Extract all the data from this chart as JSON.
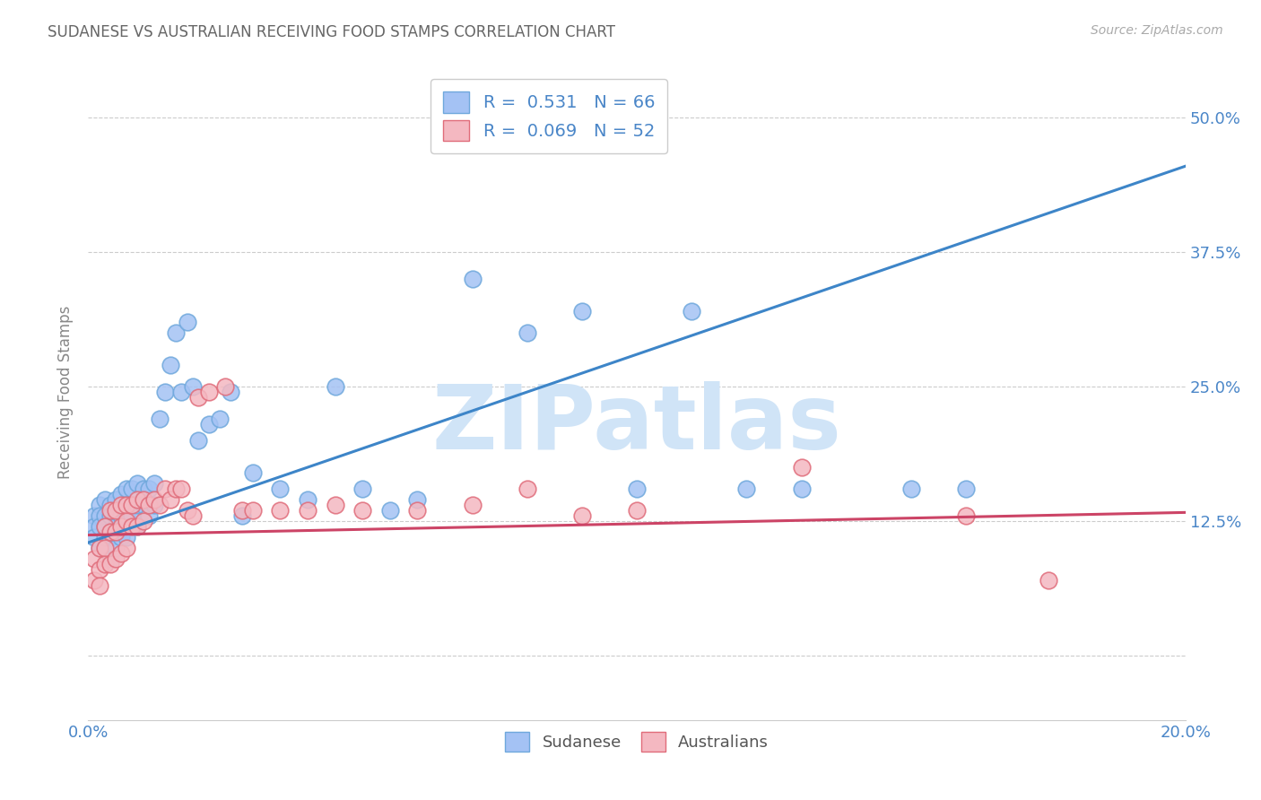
{
  "title": "SUDANESE VS AUSTRALIAN RECEIVING FOOD STAMPS CORRELATION CHART",
  "source": "Source: ZipAtlas.com",
  "ylabel": "Receiving Food Stamps",
  "xlim": [
    0.0,
    0.2
  ],
  "ylim": [
    -0.06,
    0.55
  ],
  "xticks": [
    0.0,
    0.05,
    0.1,
    0.15,
    0.2
  ],
  "xtick_labels": [
    "0.0%",
    "",
    "",
    "",
    "20.0%"
  ],
  "ytick_positions": [
    0.0,
    0.125,
    0.25,
    0.375,
    0.5
  ],
  "ytick_labels": [
    "",
    "12.5%",
    "25.0%",
    "37.5%",
    "50.0%"
  ],
  "blue_R": 0.531,
  "blue_N": 66,
  "pink_R": 0.069,
  "pink_N": 52,
  "blue_color": "#a4c2f4",
  "pink_color": "#f4b8c1",
  "blue_edge_color": "#6fa8dc",
  "pink_edge_color": "#e06c7a",
  "blue_line_color": "#3d85c8",
  "pink_line_color": "#cc4466",
  "watermark_color": "#d0e4f7",
  "grid_color": "#cccccc",
  "title_color": "#666666",
  "axis_label_color": "#4a86c8",
  "blue_line_x0": 0.0,
  "blue_line_x1": 0.2,
  "blue_line_y0": 0.105,
  "blue_line_y1": 0.455,
  "pink_line_x0": 0.0,
  "pink_line_x1": 0.2,
  "pink_line_y0": 0.112,
  "pink_line_y1": 0.133,
  "blue_scatter_x": [
    0.001,
    0.001,
    0.001,
    0.002,
    0.002,
    0.002,
    0.002,
    0.003,
    0.003,
    0.003,
    0.003,
    0.004,
    0.004,
    0.004,
    0.004,
    0.005,
    0.005,
    0.005,
    0.005,
    0.006,
    0.006,
    0.006,
    0.007,
    0.007,
    0.007,
    0.007,
    0.008,
    0.008,
    0.008,
    0.009,
    0.009,
    0.009,
    0.01,
    0.01,
    0.011,
    0.011,
    0.012,
    0.012,
    0.013,
    0.014,
    0.015,
    0.016,
    0.017,
    0.018,
    0.019,
    0.02,
    0.022,
    0.024,
    0.026,
    0.028,
    0.03,
    0.035,
    0.04,
    0.045,
    0.05,
    0.055,
    0.06,
    0.07,
    0.08,
    0.09,
    0.1,
    0.11,
    0.12,
    0.13,
    0.15,
    0.16
  ],
  "blue_scatter_y": [
    0.13,
    0.12,
    0.11,
    0.14,
    0.13,
    0.12,
    0.1,
    0.145,
    0.13,
    0.12,
    0.11,
    0.14,
    0.13,
    0.11,
    0.09,
    0.145,
    0.13,
    0.12,
    0.1,
    0.15,
    0.13,
    0.11,
    0.155,
    0.14,
    0.13,
    0.11,
    0.155,
    0.14,
    0.13,
    0.16,
    0.14,
    0.12,
    0.155,
    0.14,
    0.155,
    0.13,
    0.16,
    0.14,
    0.22,
    0.245,
    0.27,
    0.3,
    0.245,
    0.31,
    0.25,
    0.2,
    0.215,
    0.22,
    0.245,
    0.13,
    0.17,
    0.155,
    0.145,
    0.25,
    0.155,
    0.135,
    0.145,
    0.35,
    0.3,
    0.32,
    0.155,
    0.32,
    0.155,
    0.155,
    0.155,
    0.155
  ],
  "pink_scatter_x": [
    0.001,
    0.001,
    0.002,
    0.002,
    0.002,
    0.003,
    0.003,
    0.003,
    0.004,
    0.004,
    0.004,
    0.005,
    0.005,
    0.005,
    0.006,
    0.006,
    0.006,
    0.007,
    0.007,
    0.007,
    0.008,
    0.008,
    0.009,
    0.009,
    0.01,
    0.01,
    0.011,
    0.012,
    0.013,
    0.014,
    0.015,
    0.016,
    0.017,
    0.018,
    0.019,
    0.02,
    0.022,
    0.025,
    0.028,
    0.03,
    0.035,
    0.04,
    0.045,
    0.05,
    0.06,
    0.07,
    0.08,
    0.09,
    0.1,
    0.13,
    0.16,
    0.175
  ],
  "pink_scatter_y": [
    0.09,
    0.07,
    0.1,
    0.08,
    0.065,
    0.12,
    0.1,
    0.085,
    0.135,
    0.115,
    0.085,
    0.135,
    0.115,
    0.09,
    0.14,
    0.12,
    0.095,
    0.14,
    0.125,
    0.1,
    0.14,
    0.12,
    0.145,
    0.12,
    0.145,
    0.125,
    0.14,
    0.145,
    0.14,
    0.155,
    0.145,
    0.155,
    0.155,
    0.135,
    0.13,
    0.24,
    0.245,
    0.25,
    0.135,
    0.135,
    0.135,
    0.135,
    0.14,
    0.135,
    0.135,
    0.14,
    0.155,
    0.13,
    0.135,
    0.175,
    0.13,
    0.07
  ]
}
